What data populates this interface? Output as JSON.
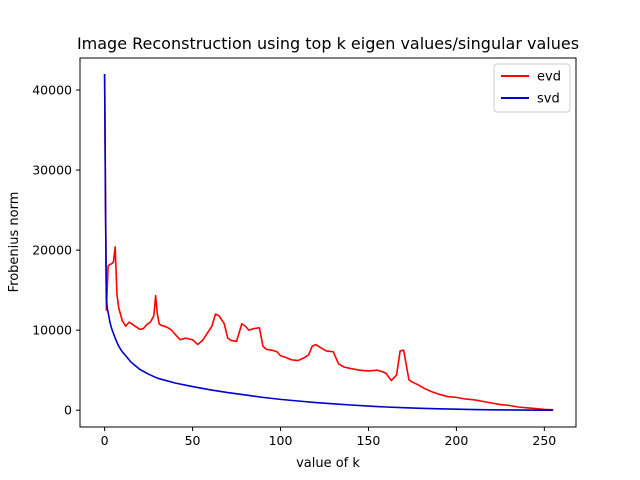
{
  "chart_data": {
    "type": "line",
    "title": "Image Reconstruction using top k eigen values/singular values",
    "xlabel": "value of k",
    "ylabel": "Frobenius norm",
    "xlim": [
      -14,
      268
    ],
    "ylim": [
      -2100,
      44000
    ],
    "xticks": [
      0,
      50,
      100,
      150,
      200,
      250
    ],
    "xtick_labels": [
      "0",
      "50",
      "100",
      "150",
      "200",
      "250"
    ],
    "yticks": [
      0,
      10000,
      20000,
      30000,
      40000
    ],
    "ytick_labels": [
      "0",
      "10000",
      "20000",
      "30000",
      "40000"
    ],
    "grid": false,
    "legend_position": "top-right",
    "series": [
      {
        "name": "evd",
        "color": "#ff0000",
        "x": [
          0,
          1,
          2,
          3,
          4,
          5,
          6,
          7,
          8,
          9,
          10,
          12,
          14,
          16,
          18,
          20,
          22,
          24,
          26,
          28,
          29,
          30,
          31,
          32,
          34,
          36,
          38,
          40,
          43,
          46,
          50,
          53,
          56,
          58,
          61,
          63,
          65,
          68,
          70,
          72,
          75,
          78,
          80,
          82,
          85,
          88,
          90,
          92,
          95,
          98,
          100,
          103,
          106,
          110,
          113,
          116,
          118,
          120,
          123,
          126,
          130,
          133,
          136,
          140,
          145,
          150,
          155,
          158,
          160,
          163,
          166,
          168,
          170,
          173,
          175,
          178,
          182,
          186,
          190,
          195,
          200,
          205,
          210,
          215,
          220,
          225,
          230,
          235,
          240,
          245,
          250,
          255
        ],
        "y": [
          42000,
          12500,
          18000,
          18200,
          18300,
          18500,
          20400,
          14500,
          12800,
          12000,
          11200,
          10500,
          11000,
          10700,
          10400,
          10100,
          10200,
          10700,
          11000,
          11800,
          14300,
          12000,
          10800,
          10600,
          10500,
          10300,
          10000,
          9500,
          8800,
          9000,
          8800,
          8200,
          8800,
          9500,
          10500,
          12000,
          11800,
          10800,
          9000,
          8700,
          8600,
          10800,
          10500,
          10000,
          10200,
          10300,
          8000,
          7600,
          7500,
          7300,
          6800,
          6600,
          6300,
          6200,
          6500,
          6900,
          8000,
          8200,
          7800,
          7400,
          7300,
          5800,
          5400,
          5200,
          5000,
          4900,
          5000,
          4800,
          4600,
          3700,
          4400,
          7400,
          7500,
          3800,
          3500,
          3200,
          2700,
          2300,
          2000,
          1700,
          1600,
          1400,
          1300,
          1100,
          900,
          700,
          600,
          400,
          300,
          200,
          100,
          50
        ]
      },
      {
        "name": "svd",
        "color": "#0000cd",
        "x": [
          0,
          0.5,
          1,
          1.5,
          2,
          3,
          4,
          6,
          8,
          10,
          12,
          15,
          20,
          25,
          30,
          40,
          50,
          60,
          70,
          80,
          90,
          100,
          110,
          120,
          130,
          140,
          150,
          160,
          170,
          180,
          190,
          200,
          210,
          220,
          230,
          240,
          250,
          255
        ],
        "y": [
          42000,
          25000,
          14000,
          12800,
          12200,
          11000,
          10200,
          9000,
          8000,
          7300,
          6800,
          6000,
          5100,
          4500,
          4000,
          3400,
          2950,
          2550,
          2200,
          1900,
          1600,
          1350,
          1150,
          950,
          800,
          650,
          520,
          400,
          310,
          230,
          170,
          120,
          80,
          50,
          30,
          15,
          5,
          0
        ]
      }
    ]
  }
}
